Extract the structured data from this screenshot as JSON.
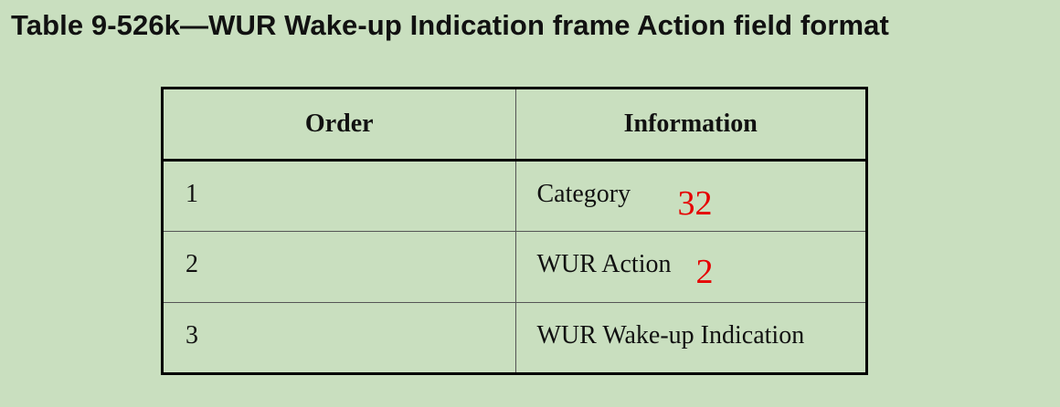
{
  "caption": "Table 9-526k—WUR Wake-up Indication frame Action field format",
  "table": {
    "headers": [
      "Order",
      "Information"
    ],
    "rows": [
      {
        "order": "1",
        "information": "Category",
        "annotation": "32"
      },
      {
        "order": "2",
        "information": "WUR Action",
        "annotation": "2"
      },
      {
        "order": "3",
        "information": "WUR Wake-up Indication",
        "annotation": ""
      }
    ]
  },
  "colors": {
    "background": "#c9dfbf",
    "annotation": "#e60000"
  }
}
